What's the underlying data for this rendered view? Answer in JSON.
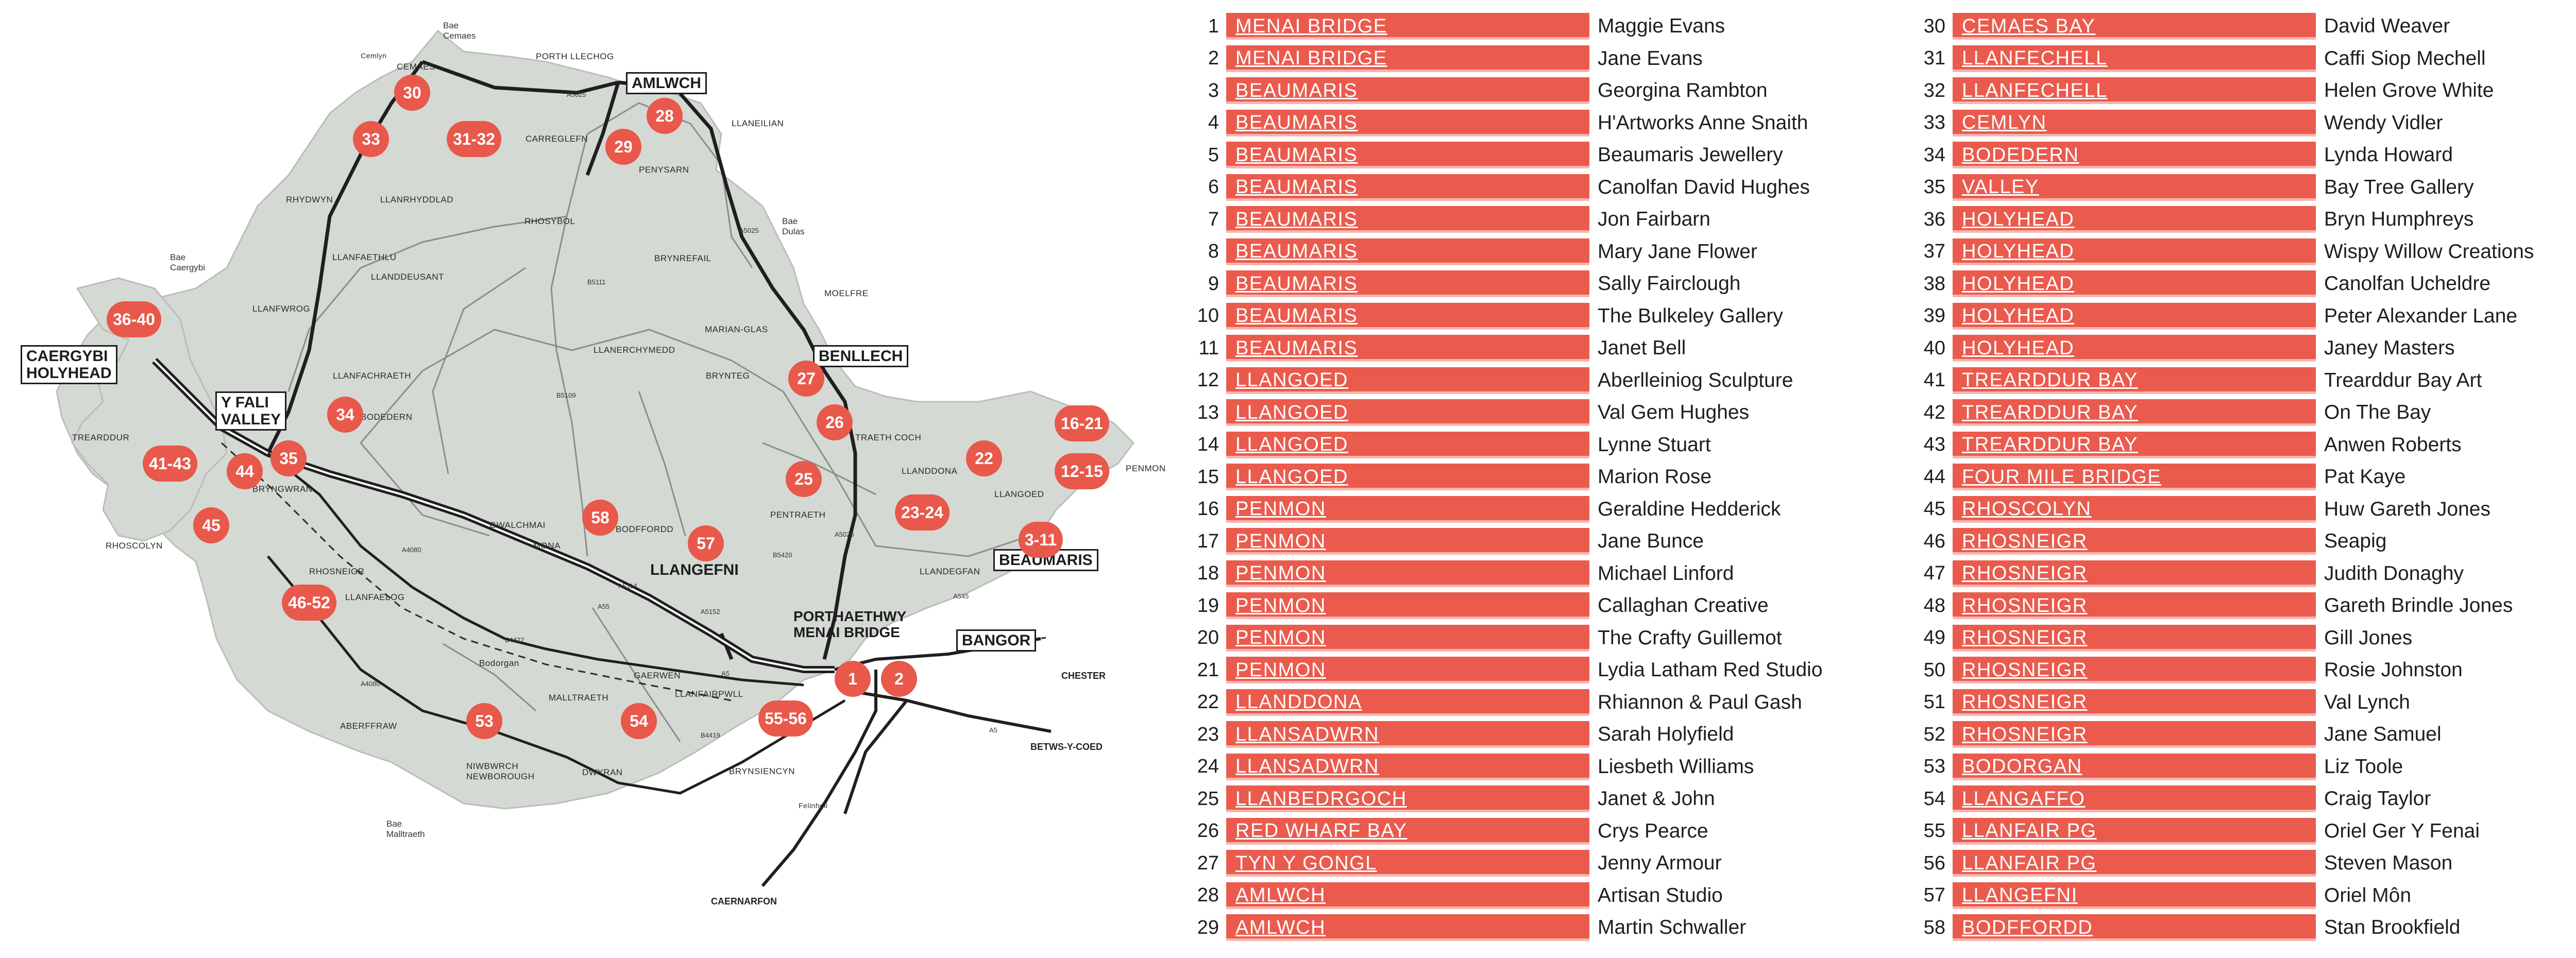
{
  "map": {
    "towns_boxed": {
      "holyhead": "CAERGYBI\nHOLYHEAD",
      "valley": "Y FALI\nVALLEY",
      "benllech": "BENLLECH",
      "beaumaris": "BEAUMARIS",
      "bangor": "BANGOR",
      "amlwch": "AMLWCH"
    },
    "towns_plain": {
      "llangefni": "LLANGEFNI",
      "menai": "PORTHAETHWY\nMENAI BRIDGE"
    },
    "places": {
      "cemaes": "CEMAES",
      "porth_llechog": "PORTH LLECHOG",
      "llaneilian": "LLANEILIAN",
      "carrreglefn": "CARREGLEFN",
      "penysarn": "PENYSARN",
      "rhosybol": "RHOSYBOL",
      "rhydwyn": "RHYDWYN",
      "llanrhyddlad": "LLANRHYDDLAD",
      "llanfaethlu": "LLANFAETHLU",
      "llanddeusant": "LLANDDEUSANT",
      "brynrefail": "BRYNREFAIL",
      "moelfre": "MOELFRE",
      "llanfwrog": "LLANFWROG",
      "marian_glas": "MARIAN-GLAS",
      "llanerchymedd": "LLANERCHYMEDD",
      "llanfachraeth": "LLANFACHRAETH",
      "brynteg": "BRYNTEG",
      "bodedern": "BODEDERN",
      "traeth_coch": "TRAETH COCH",
      "trearddur": "TREARDDUR",
      "bryngwran": "BRYNGWRAN",
      "llandoona": "LLANDDONA",
      "llangoed": "LLANGOED",
      "penmon": "PENMON",
      "pentraeth": "PENTRAETH",
      "gwalchmai": "GWALCHMAI",
      "bodffordd": "BODFFORDD",
      "mona": "MONA",
      "rhoscolyn": "RHOSCOLYN",
      "rhosneigr": "RHOSNEIGR",
      "llandegfan": "LLANDEGFAN",
      "llanfaelog": "LLANFAELOG",
      "gaerwen": "GAERWEN",
      "bodorgan": "Bodorgan",
      "llanfairpwll": "LLANFAIRPWLL",
      "malltraeth": "MALLTRAETH",
      "aberffraw": "ABERFFRAW",
      "niwbwrch": "NIWBWRCH\nNEWBOROUGH",
      "dwyran": "DWYRAN",
      "brynsiencyn": "BRYNSIENCYN",
      "felinheli": "Felinheli",
      "cemlyn": "Cemlyn"
    },
    "seas": {
      "bae_cemaes": "Bae\nCemaes",
      "bae_dulas": "Bae\nDulas",
      "bae_caergybi": "Bae\nCaergybi",
      "bae_malltraeth": "Bae\nMalltraeth"
    },
    "destinations": {
      "chester": "CHESTER",
      "betws": "BETWS-Y-COED",
      "caernarfon": "CAERNARFON"
    },
    "roads": {
      "a5025_n": "A5025",
      "a5025_ne": "A5025",
      "b5111": "B5111",
      "b5109": "B5109",
      "a5025_e": "A5025",
      "a55": "A55",
      "a55_e": "A5",
      "a5114": "A5114",
      "a4080": "A4080",
      "a545": "A545",
      "a5152": "A5152",
      "b5420": "B5420",
      "a4080_s": "A4080",
      "b4419": "B4419",
      "b4422": "B4422",
      "a5_s": "A5"
    },
    "markers": [
      {
        "label": "30"
      },
      {
        "label": "33"
      },
      {
        "label": "31-32"
      },
      {
        "label": "28"
      },
      {
        "label": "29"
      },
      {
        "label": "36-40"
      },
      {
        "label": "27"
      },
      {
        "label": "26"
      },
      {
        "label": "34"
      },
      {
        "label": "16-21"
      },
      {
        "label": "22"
      },
      {
        "label": "12-15"
      },
      {
        "label": "41-43"
      },
      {
        "label": "44"
      },
      {
        "label": "35"
      },
      {
        "label": "25"
      },
      {
        "label": "23-24"
      },
      {
        "label": "45"
      },
      {
        "label": "58"
      },
      {
        "label": "57"
      },
      {
        "label": "3-11"
      },
      {
        "label": "46-52"
      },
      {
        "label": "1"
      },
      {
        "label": "2"
      },
      {
        "label": "53"
      },
      {
        "label": "54"
      },
      {
        "label": "55-56"
      }
    ]
  },
  "listing_left": [
    {
      "num": "1",
      "location": "MENAI BRIDGE",
      "artist": "Maggie Evans"
    },
    {
      "num": "2",
      "location": "MENAI BRIDGE",
      "artist": "Jane Evans"
    },
    {
      "num": "3",
      "location": "BEAUMARIS",
      "artist": "Georgina Rambton"
    },
    {
      "num": "4",
      "location": "BEAUMARIS",
      "artist": "H'Artworks Anne Snaith"
    },
    {
      "num": "5",
      "location": "BEAUMARIS",
      "artist": "Beaumaris Jewellery"
    },
    {
      "num": "6",
      "location": "BEAUMARIS",
      "artist": "Canolfan David Hughes"
    },
    {
      "num": "7",
      "location": "BEAUMARIS",
      "artist": "Jon Fairbarn"
    },
    {
      "num": "8",
      "location": "BEAUMARIS",
      "artist": "Mary Jane Flower"
    },
    {
      "num": "9",
      "location": "BEAUMARIS",
      "artist": "Sally Fairclough"
    },
    {
      "num": "10",
      "location": "BEAUMARIS",
      "artist": "The Bulkeley Gallery"
    },
    {
      "num": "11",
      "location": "BEAUMARIS",
      "artist": "Janet Bell"
    },
    {
      "num": "12",
      "location": "LLANGOED",
      "artist": "Aberlleiniog Sculpture"
    },
    {
      "num": "13",
      "location": "LLANGOED",
      "artist": "Val Gem Hughes"
    },
    {
      "num": "14",
      "location": "LLANGOED",
      "artist": "Lynne Stuart"
    },
    {
      "num": "15",
      "location": "LLANGOED",
      "artist": "Marion Rose"
    },
    {
      "num": "16",
      "location": "PENMON",
      "artist": "Geraldine Hedderick"
    },
    {
      "num": "17",
      "location": "PENMON",
      "artist": "Jane Bunce"
    },
    {
      "num": "18",
      "location": "PENMON",
      "artist": "Michael Linford"
    },
    {
      "num": "19",
      "location": "PENMON",
      "artist": "Callaghan Creative"
    },
    {
      "num": "20",
      "location": "PENMON",
      "artist": "The Crafty Guillemot"
    },
    {
      "num": "21",
      "location": "PENMON",
      "artist": "Lydia Latham Red Studio"
    },
    {
      "num": "22",
      "location": "LLANDDONA",
      "artist": "Rhiannon & Paul Gash"
    },
    {
      "num": "23",
      "location": "LLANSADWRN",
      "artist": "Sarah Holyfield"
    },
    {
      "num": "24",
      "location": "LLANSADWRN",
      "artist": "Liesbeth Williams"
    },
    {
      "num": "25",
      "location": "LLANBEDRGOCH",
      "artist": "Janet & John"
    },
    {
      "num": "26",
      "location": "RED WHARF BAY",
      "artist": "Crys Pearce"
    },
    {
      "num": "27",
      "location": "TYN Y GONGL",
      "artist": "Jenny Armour"
    },
    {
      "num": "28",
      "location": "AMLWCH",
      "artist": "Artisan Studio"
    },
    {
      "num": "29",
      "location": "AMLWCH",
      "artist": "Martin Schwaller"
    }
  ],
  "listing_right": [
    {
      "num": "30",
      "location": "CEMAES BAY",
      "artist": "David Weaver"
    },
    {
      "num": "31",
      "location": "LLANFECHELL",
      "artist": "Caffi Siop Mechell"
    },
    {
      "num": "32",
      "location": "LLANFECHELL",
      "artist": "Helen Grove White"
    },
    {
      "num": "33",
      "location": "CEMLYN",
      "artist": "Wendy Vidler"
    },
    {
      "num": "34",
      "location": "BODEDERN",
      "artist": "Lynda Howard"
    },
    {
      "num": "35",
      "location": "VALLEY",
      "artist": "Bay Tree Gallery"
    },
    {
      "num": "36",
      "location": "HOLYHEAD",
      "artist": "Bryn Humphreys"
    },
    {
      "num": "37",
      "location": "HOLYHEAD",
      "artist": "Wispy Willow Creations"
    },
    {
      "num": "38",
      "location": "HOLYHEAD",
      "artist": "Canolfan Ucheldre"
    },
    {
      "num": "39",
      "location": "HOLYHEAD",
      "artist": "Peter Alexander Lane"
    },
    {
      "num": "40",
      "location": "HOLYHEAD",
      "artist": "Janey Masters"
    },
    {
      "num": "41",
      "location": "TREARDDUR BAY",
      "artist": "Trearddur Bay Art"
    },
    {
      "num": "42",
      "location": "TREARDDUR BAY",
      "artist": "On The Bay"
    },
    {
      "num": "43",
      "location": "TREARDDUR BAY",
      "artist": "Anwen Roberts"
    },
    {
      "num": "44",
      "location": "FOUR MILE BRIDGE",
      "artist": "Pat Kaye"
    },
    {
      "num": "45",
      "location": "RHOSCOLYN",
      "artist": "Huw Gareth Jones"
    },
    {
      "num": "46",
      "location": "RHOSNEIGR",
      "artist": "Seapig"
    },
    {
      "num": "47",
      "location": "RHOSNEIGR",
      "artist": "Judith Donaghy"
    },
    {
      "num": "48",
      "location": "RHOSNEIGR",
      "artist": "Gareth Brindle Jones"
    },
    {
      "num": "49",
      "location": "RHOSNEIGR",
      "artist": "Gill Jones"
    },
    {
      "num": "50",
      "location": "RHOSNEIGR",
      "artist": "Rosie Johnston"
    },
    {
      "num": "51",
      "location": "RHOSNEIGR",
      "artist": "Val Lynch"
    },
    {
      "num": "52",
      "location": "RHOSNEIGR",
      "artist": "Jane Samuel"
    },
    {
      "num": "53",
      "location": "BODORGAN",
      "artist": "Liz Toole"
    },
    {
      "num": "54",
      "location": "LLANGAFFO",
      "artist": "Craig Taylor"
    },
    {
      "num": "55",
      "location": "LLANFAIR PG",
      "artist": "Oriel Ger Y Fenai"
    },
    {
      "num": "56",
      "location": "LLANFAIR PG",
      "artist": "Steven Mason"
    },
    {
      "num": "57",
      "location": "LLANGEFNI",
      "artist": "Oriel Môn"
    },
    {
      "num": "58",
      "location": "BODFFORDD",
      "artist": "Stan Brookfield"
    }
  ],
  "colors": {
    "land": "#d4d9d3",
    "marker": "#e8584b",
    "bar": "#ea5b4d",
    "road_major": "#1f1f1f",
    "road_minor": "#8a8f8c"
  }
}
